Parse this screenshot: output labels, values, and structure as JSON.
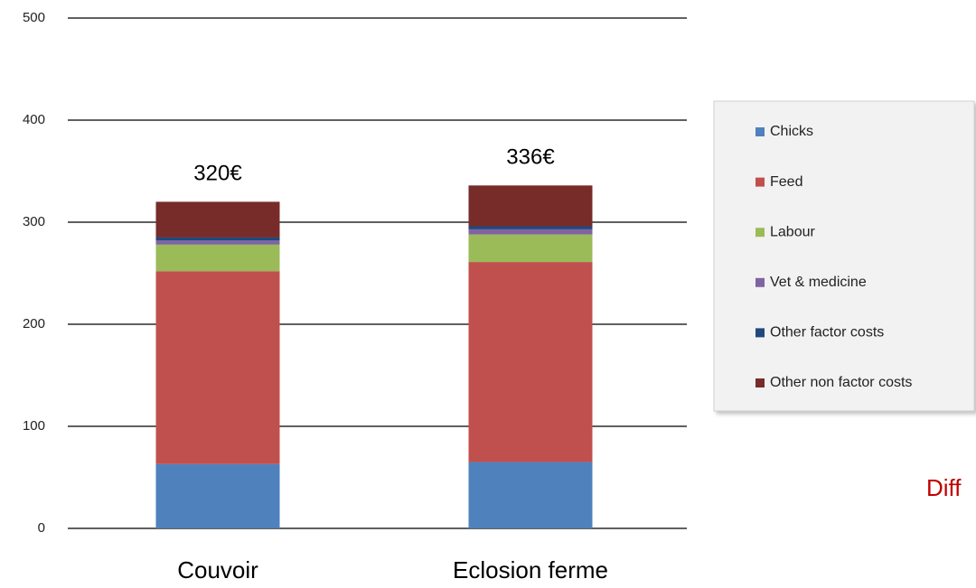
{
  "chart_data": {
    "type": "stacked_bar",
    "categories": [
      "Couvoir",
      "Eclosion ferme"
    ],
    "series": [
      {
        "name": "Chicks",
        "color": "#4f81bd",
        "values": [
          63,
          65
        ]
      },
      {
        "name": "Feed",
        "color": "#c0504d",
        "values": [
          189,
          196
        ]
      },
      {
        "name": "Labour",
        "color": "#9bbb59",
        "values": [
          26,
          27
        ]
      },
      {
        "name": "Vet & medicine",
        "color": "#8064a2",
        "values": [
          4,
          5
        ]
      },
      {
        "name": "Other factor costs",
        "color": "#1f497d",
        "values": [
          3,
          3
        ]
      },
      {
        "name": "Other non factor costs",
        "color": "#772c2a",
        "values": [
          35,
          40
        ]
      }
    ],
    "totals": [
      320,
      336
    ],
    "total_labels": [
      "320€",
      "336€"
    ],
    "ylim": [
      0,
      500
    ],
    "yticks": [
      0,
      100,
      200,
      300,
      400,
      500
    ],
    "grid": true,
    "legend": "right",
    "annotation": "Diff"
  }
}
